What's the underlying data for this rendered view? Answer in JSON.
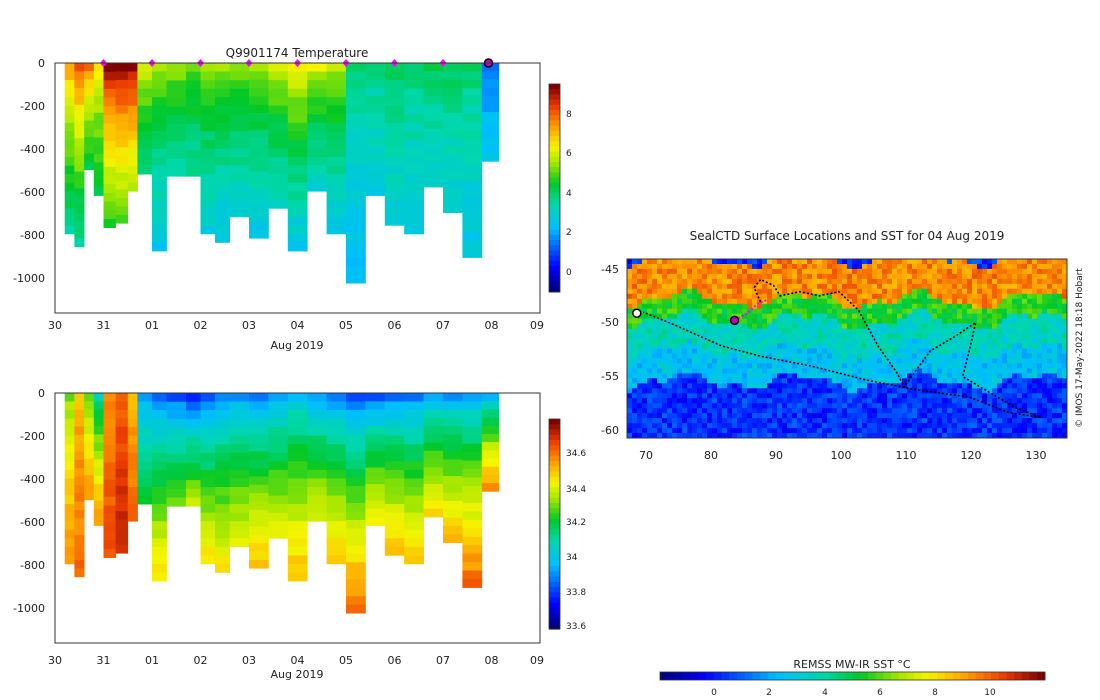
{
  "temp_chart": {
    "title": "Q9901174  Temperature",
    "xlabel": "Aug 2019",
    "xticks": [
      "30",
      "31",
      "01",
      "02",
      "03",
      "04",
      "05",
      "06",
      "07",
      "08",
      "09"
    ],
    "yticks": [
      "0",
      "-200",
      "-400",
      "-600",
      "-800",
      "-1000"
    ],
    "colorbar_ticks": [
      "8",
      "6",
      "4",
      "2",
      "0"
    ]
  },
  "sal_chart": {
    "xlabel": "Aug 2019",
    "xticks": [
      "30",
      "31",
      "01",
      "02",
      "03",
      "04",
      "05",
      "06",
      "07",
      "08",
      "09"
    ],
    "yticks": [
      "0",
      "-200",
      "-400",
      "-600",
      "-800",
      "-1000"
    ],
    "colorbar_ticks": [
      "34.6",
      "34.4",
      "34.2",
      "34",
      "33.8",
      "33.6"
    ]
  },
  "map": {
    "title": "SealCTD Surface Locations and SST for 04 Aug 2019",
    "xticks": [
      "70",
      "80",
      "90",
      "100",
      "110",
      "120",
      "130"
    ],
    "yticks": [
      "-45",
      "-50",
      "-55",
      "-60"
    ],
    "credit": "© IMOS 17-May-2022 18:18 Hobart",
    "colorbar_label": "REMSS MW-IR SST °C",
    "colorbar_ticks": [
      "0",
      "2",
      "4",
      "6",
      "8",
      "10"
    ]
  },
  "chart_data": [
    {
      "type": "heatmap",
      "title": "Q9901174  Temperature",
      "xlabel": "Aug 2019",
      "ylabel": "",
      "x_range_days": [
        30,
        40
      ],
      "ylim": [
        -1170,
        0
      ],
      "clim": [
        -1,
        9.5
      ],
      "units": "degC",
      "profiles": [
        {
          "day": 30.2,
          "depth": 800,
          "surface": 7.5,
          "deep": 3.5
        },
        {
          "day": 30.4,
          "depth": 860,
          "surface": 8.5,
          "deep": 3.5
        },
        {
          "day": 30.6,
          "depth": 500,
          "surface": 7.8,
          "deep": 4.2
        },
        {
          "day": 30.8,
          "depth": 620,
          "surface": 6.5,
          "deep": 4.3
        },
        {
          "day": 31.0,
          "depth": 770,
          "surface": 9.5,
          "deep": 4.8
        },
        {
          "day": 31.25,
          "depth": 750,
          "surface": 9.5,
          "deep": 5.0
        },
        {
          "day": 31.5,
          "depth": 600,
          "surface": 9.5,
          "deep": 5.5
        },
        {
          "day": 31.7,
          "depth": 520,
          "surface": 6.0,
          "deep": 3.8
        },
        {
          "day": 32.0,
          "depth": 880,
          "surface": 5.8,
          "deep": 2.5
        },
        {
          "day": 32.3,
          "depth": 530,
          "surface": 5.5,
          "deep": 3.5
        },
        {
          "day": 32.7,
          "depth": 530,
          "surface": 5.2,
          "deep": 3.5
        },
        {
          "day": 33.0,
          "depth": 800,
          "surface": 5.5,
          "deep": 2.8
        },
        {
          "day": 33.3,
          "depth": 840,
          "surface": 5.4,
          "deep": 2.6
        },
        {
          "day": 33.6,
          "depth": 720,
          "surface": 5.5,
          "deep": 2.8
        },
        {
          "day": 34.0,
          "depth": 820,
          "surface": 5.6,
          "deep": 2.6
        },
        {
          "day": 34.4,
          "depth": 680,
          "surface": 6.0,
          "deep": 3.0
        },
        {
          "day": 34.8,
          "depth": 880,
          "surface": 6.5,
          "deep": 2.6
        },
        {
          "day": 35.2,
          "depth": 600,
          "surface": 6.2,
          "deep": 3.0
        },
        {
          "day": 35.6,
          "depth": 800,
          "surface": 5.8,
          "deep": 2.7
        },
        {
          "day": 36.0,
          "depth": 1030,
          "surface": 4.0,
          "deep": 2.2
        },
        {
          "day": 36.4,
          "depth": 620,
          "surface": 3.8,
          "deep": 2.8
        },
        {
          "day": 36.8,
          "depth": 760,
          "surface": 4.2,
          "deep": 2.8
        },
        {
          "day": 37.2,
          "depth": 800,
          "surface": 3.9,
          "deep": 2.8
        },
        {
          "day": 37.6,
          "depth": 580,
          "surface": 4.1,
          "deep": 2.9
        },
        {
          "day": 38.0,
          "depth": 700,
          "surface": 4.2,
          "deep": 2.8
        },
        {
          "day": 38.4,
          "depth": 910,
          "surface": 4.0,
          "deep": 2.5
        },
        {
          "day": 38.8,
          "depth": 460,
          "surface": 1.5,
          "deep": 2.4
        }
      ],
      "surface_markers_days": [
        31.0,
        32.0,
        33.0,
        34.0,
        35.0,
        36.0,
        37.0,
        38.0
      ],
      "current_position_day": 39.0
    },
    {
      "type": "heatmap",
      "title": "",
      "xlabel": "Aug 2019",
      "ylabel": "",
      "x_range_days": [
        30,
        40
      ],
      "ylim": [
        -1170,
        0
      ],
      "clim": [
        33.58,
        34.78
      ],
      "units": "PSU",
      "profiles": [
        {
          "day": 30.2,
          "depth": 800,
          "surface": 34.3,
          "deep": 34.55
        },
        {
          "day": 30.4,
          "depth": 860,
          "surface": 34.5,
          "deep": 34.6
        },
        {
          "day": 30.6,
          "depth": 500,
          "surface": 34.25,
          "deep": 34.55
        },
        {
          "day": 30.8,
          "depth": 620,
          "surface": 34.05,
          "deep": 34.55
        },
        {
          "day": 31.0,
          "depth": 770,
          "surface": 34.55,
          "deep": 34.65
        },
        {
          "day": 31.25,
          "depth": 750,
          "surface": 34.6,
          "deep": 34.7
        },
        {
          "day": 31.5,
          "depth": 600,
          "surface": 34.5,
          "deep": 34.6
        },
        {
          "day": 31.7,
          "depth": 520,
          "surface": 33.9,
          "deep": 34.2
        },
        {
          "day": 32.0,
          "depth": 880,
          "surface": 33.85,
          "deep": 34.45
        },
        {
          "day": 32.3,
          "depth": 530,
          "surface": 33.8,
          "deep": 34.3
        },
        {
          "day": 32.7,
          "depth": 530,
          "surface": 33.75,
          "deep": 34.35
        },
        {
          "day": 33.0,
          "depth": 800,
          "surface": 33.8,
          "deep": 34.45
        },
        {
          "day": 33.3,
          "depth": 840,
          "surface": 33.85,
          "deep": 34.45
        },
        {
          "day": 33.6,
          "depth": 720,
          "surface": 33.9,
          "deep": 34.4
        },
        {
          "day": 34.0,
          "depth": 820,
          "surface": 33.85,
          "deep": 34.5
        },
        {
          "day": 34.4,
          "depth": 680,
          "surface": 33.9,
          "deep": 34.4
        },
        {
          "day": 34.8,
          "depth": 880,
          "surface": 33.95,
          "deep": 34.5
        },
        {
          "day": 35.2,
          "depth": 600,
          "surface": 33.9,
          "deep": 34.4
        },
        {
          "day": 35.6,
          "depth": 800,
          "surface": 33.85,
          "deep": 34.5
        },
        {
          "day": 36.0,
          "depth": 1030,
          "surface": 33.8,
          "deep": 34.6
        },
        {
          "day": 36.4,
          "depth": 620,
          "surface": 33.8,
          "deep": 34.45
        },
        {
          "day": 36.8,
          "depth": 760,
          "surface": 33.85,
          "deep": 34.5
        },
        {
          "day": 37.2,
          "depth": 800,
          "surface": 33.85,
          "deep": 34.5
        },
        {
          "day": 37.6,
          "depth": 580,
          "surface": 33.9,
          "deep": 34.45
        },
        {
          "day": 38.0,
          "depth": 700,
          "surface": 33.9,
          "deep": 34.5
        },
        {
          "day": 38.4,
          "depth": 910,
          "surface": 33.9,
          "deep": 34.6
        },
        {
          "day": 38.8,
          "depth": 460,
          "surface": 33.95,
          "deep": 34.55
        }
      ]
    },
    {
      "type": "heatmap",
      "title": "SealCTD Surface Locations and SST for 04 Aug 2019",
      "xlabel": "",
      "ylabel": "",
      "xlim": [
        67.5,
        135
      ],
      "ylim": [
        -61.5,
        -44
      ],
      "clim": [
        -2,
        12
      ],
      "units": "degC",
      "sst_zones": [
        {
          "lat_north": -44,
          "lat_south": -48,
          "sst": 9.5
        },
        {
          "lat_north": -48,
          "lat_south": -50,
          "sst": 5.5
        },
        {
          "lat_north": -50,
          "lat_south": -53,
          "sst": 3.5
        },
        {
          "lat_north": -53,
          "lat_south": -56,
          "sst": 2.5
        },
        {
          "lat_north": -56,
          "lat_south": -61.5,
          "sst": 0.2
        }
      ],
      "track_lonlat": [
        [
          88,
          -48.2
        ],
        [
          87,
          -46.8
        ],
        [
          88,
          -46.0
        ],
        [
          90,
          -46.6
        ],
        [
          91,
          -47.6
        ],
        [
          94,
          -47.2
        ],
        [
          97,
          -47.6
        ],
        [
          100,
          -47.2
        ],
        [
          103,
          -49.0
        ],
        [
          106,
          -52.5
        ],
        [
          109,
          -55.2
        ],
        [
          110,
          -56.5
        ],
        [
          114,
          -53.0
        ],
        [
          118,
          -51.5
        ],
        [
          121,
          -50.2
        ],
        [
          120,
          -53.0
        ],
        [
          119,
          -55.5
        ],
        [
          123,
          -57.0
        ],
        [
          127,
          -58.5
        ],
        [
          131,
          -59.5
        ],
        [
          126,
          -59.0
        ],
        [
          120,
          -57.5
        ],
        [
          112,
          -56.8
        ],
        [
          104,
          -55.8
        ],
        [
          96,
          -54.5
        ],
        [
          88,
          -53.5
        ],
        [
          82,
          -52.5
        ],
        [
          75,
          -50.5
        ],
        [
          70,
          -49.2
        ]
      ],
      "recent_track_lonlat": [
        [
          84,
          -50.0
        ],
        [
          86,
          -49.3
        ],
        [
          87.5,
          -48.4
        ],
        [
          89,
          -48.0
        ]
      ],
      "current_position": [
        84,
        -50.0
      ],
      "tag_release": [
        69,
        -49.3
      ]
    }
  ]
}
